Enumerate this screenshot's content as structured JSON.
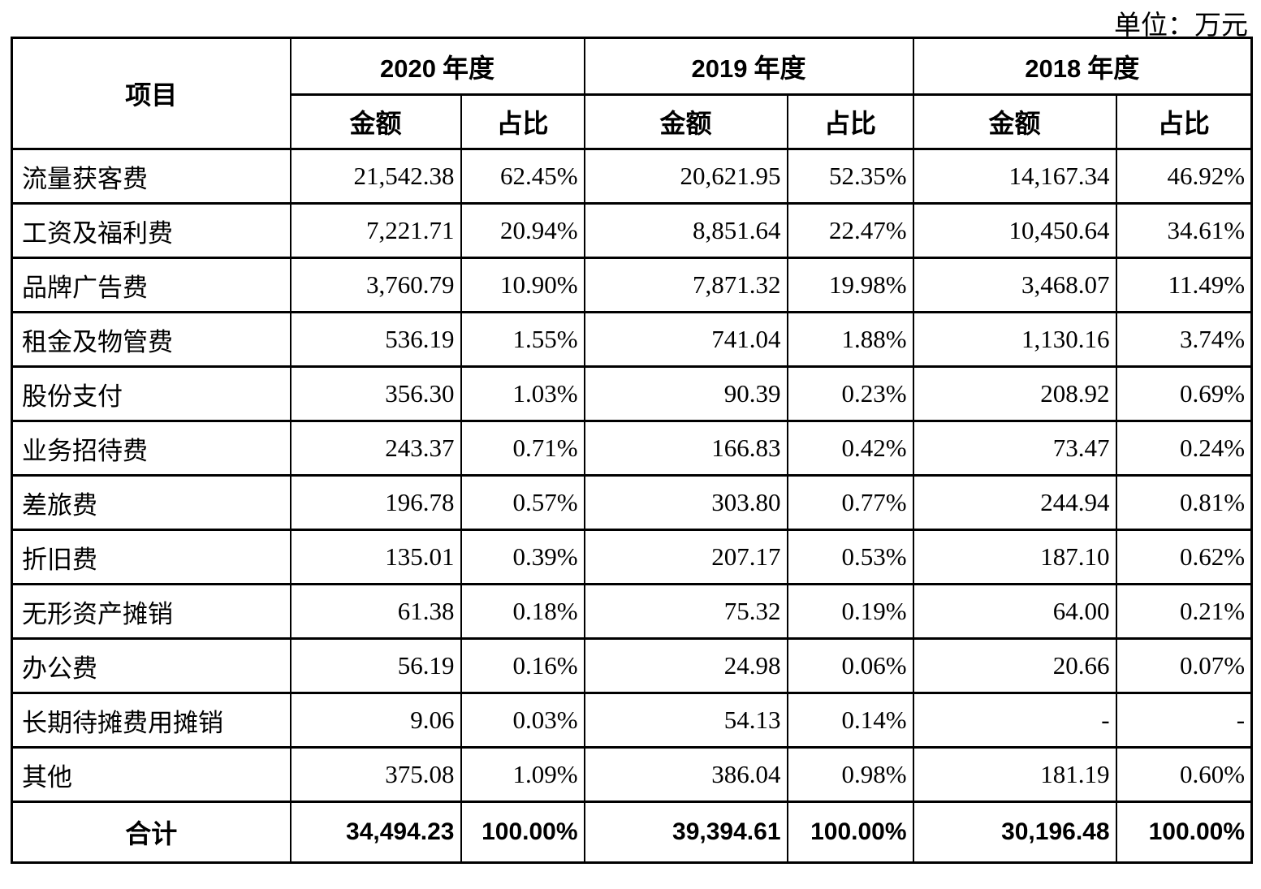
{
  "unit_label": "单位：万元",
  "table": {
    "header": {
      "item": "项目",
      "amount_label": "金额",
      "ratio_label": "占比",
      "year_groups": [
        {
          "num": "2020",
          "suffix": "年度"
        },
        {
          "num": "2019",
          "suffix": "年度"
        },
        {
          "num": "2018",
          "suffix": "年度"
        }
      ]
    },
    "rows": [
      {
        "item": "流量获客费",
        "values": [
          "21,542.38",
          "62.45%",
          "20,621.95",
          "52.35%",
          "14,167.34",
          "46.92%"
        ]
      },
      {
        "item": "工资及福利费",
        "values": [
          "7,221.71",
          "20.94%",
          "8,851.64",
          "22.47%",
          "10,450.64",
          "34.61%"
        ]
      },
      {
        "item": "品牌广告费",
        "values": [
          "3,760.79",
          "10.90%",
          "7,871.32",
          "19.98%",
          "3,468.07",
          "11.49%"
        ]
      },
      {
        "item": "租金及物管费",
        "values": [
          "536.19",
          "1.55%",
          "741.04",
          "1.88%",
          "1,130.16",
          "3.74%"
        ]
      },
      {
        "item": "股份支付",
        "values": [
          "356.30",
          "1.03%",
          "90.39",
          "0.23%",
          "208.92",
          "0.69%"
        ]
      },
      {
        "item": "业务招待费",
        "values": [
          "243.37",
          "0.71%",
          "166.83",
          "0.42%",
          "73.47",
          "0.24%"
        ]
      },
      {
        "item": "差旅费",
        "values": [
          "196.78",
          "0.57%",
          "303.80",
          "0.77%",
          "244.94",
          "0.81%"
        ]
      },
      {
        "item": "折旧费",
        "values": [
          "135.01",
          "0.39%",
          "207.17",
          "0.53%",
          "187.10",
          "0.62%"
        ]
      },
      {
        "item": "无形资产摊销",
        "values": [
          "61.38",
          "0.18%",
          "75.32",
          "0.19%",
          "64.00",
          "0.21%"
        ]
      },
      {
        "item": "办公费",
        "values": [
          "56.19",
          "0.16%",
          "24.98",
          "0.06%",
          "20.66",
          "0.07%"
        ]
      },
      {
        "item": "长期待摊费用摊销",
        "values": [
          "9.06",
          "0.03%",
          "54.13",
          "0.14%",
          "-",
          "-"
        ]
      },
      {
        "item": "其他",
        "values": [
          "375.08",
          "1.09%",
          "386.04",
          "0.98%",
          "181.19",
          "0.60%"
        ]
      }
    ],
    "total_row": {
      "item": "合计",
      "values": [
        "34,494.23",
        "100.00%",
        "39,394.61",
        "100.00%",
        "30,196.48",
        "100.00%"
      ]
    }
  }
}
